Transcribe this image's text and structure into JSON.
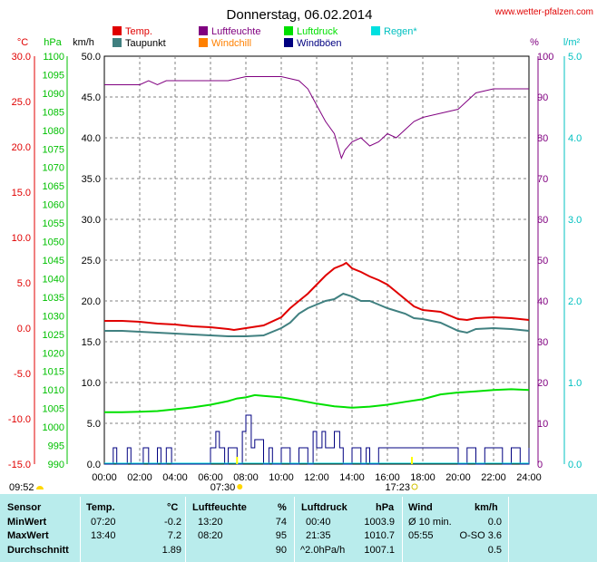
{
  "chart_data": {
    "type": "line",
    "title": "Donnerstag, 06.02.2014",
    "source": "www.wetter-pfalzen.com",
    "x_ticks": [
      "00:00",
      "02:00",
      "04:00",
      "06:00",
      "08:00",
      "10:00",
      "12:00",
      "14:00",
      "16:00",
      "18:00",
      "20:00",
      "22:00",
      "24:00"
    ],
    "axes": {
      "temp": {
        "unit": "°C",
        "ticks": [
          "30.0",
          "25.0",
          "20.0",
          "15.0",
          "10.0",
          "5.0",
          "0.0",
          "-5.0",
          "-10.0",
          "-15.0"
        ],
        "range": [
          -15,
          30
        ],
        "color": "#e00000"
      },
      "pressure": {
        "unit": "hPa",
        "ticks": [
          "1100",
          "1095",
          "1090",
          "1085",
          "1080",
          "1075",
          "1070",
          "1065",
          "1060",
          "1055",
          "1050",
          "1045",
          "1040",
          "1035",
          "1030",
          "1025",
          "1020",
          "1015",
          "1010",
          "1005",
          "1000",
          "995",
          "990"
        ],
        "range": [
          990,
          1100
        ],
        "color": "#00c000"
      },
      "wind": {
        "unit": "km/h",
        "ticks": [
          "50.0",
          "45.0",
          "40.0",
          "35.0",
          "30.0",
          "25.0",
          "20.0",
          "15.0",
          "10.0",
          "5.0",
          "0.0"
        ],
        "range": [
          0,
          50
        ],
        "color": "#000000"
      },
      "humidity": {
        "unit": "%",
        "ticks": [
          "100",
          "90",
          "80",
          "70",
          "60",
          "50",
          "40",
          "30",
          "20",
          "10",
          "0"
        ],
        "range": [
          0,
          100
        ],
        "color": "#800080"
      },
      "rain": {
        "unit": "l/m²",
        "ticks": [
          "5.0",
          "4.0",
          "3.0",
          "2.0",
          "1.0",
          "0.0"
        ],
        "range": [
          0,
          5
        ],
        "color": "#00c0c0"
      }
    },
    "legend": [
      {
        "name": "Temp.",
        "color": "#e00000"
      },
      {
        "name": "Luftfeuchte",
        "color": "#800080"
      },
      {
        "name": "Luftdruck",
        "color": "#00e000"
      },
      {
        "name": "Regen*",
        "color": "#00e0e0"
      },
      {
        "name": "Taupunkt",
        "color": "#408080"
      },
      {
        "name": "Windchill",
        "color": "#ff8000"
      },
      {
        "name": "Windböen",
        "color": "#000080"
      }
    ],
    "sunrise": "07:30",
    "sunset": "17:23",
    "moonrise": "09:52",
    "series": [
      {
        "name": "Temp.",
        "axis": "temp",
        "color": "#e00000",
        "x": [
          0,
          1,
          2,
          3,
          4,
          5,
          6,
          7,
          7.33,
          8,
          9,
          10,
          10.5,
          11,
          11.5,
          12,
          12.5,
          13,
          13.5,
          13.67,
          14,
          14.5,
          15,
          15.5,
          16,
          16.5,
          17,
          17.5,
          18,
          19,
          20,
          20.5,
          21,
          22,
          23,
          24
        ],
        "values": [
          0.8,
          0.8,
          0.7,
          0.5,
          0.4,
          0.2,
          0.1,
          -0.1,
          -0.2,
          0,
          0.3,
          1.2,
          2.2,
          3,
          3.8,
          4.8,
          5.8,
          6.6,
          7.0,
          7.2,
          6.6,
          6.2,
          5.7,
          5.3,
          4.8,
          4.0,
          3.2,
          2.4,
          2.0,
          1.8,
          1.0,
          0.9,
          1.1,
          1.2,
          1.1,
          0.9
        ]
      },
      {
        "name": "Taupunkt",
        "axis": "temp",
        "color": "#408080",
        "x": [
          0,
          1,
          2,
          3,
          4,
          5,
          6,
          7,
          8,
          9,
          10,
          10.5,
          11,
          11.5,
          12,
          12.5,
          13,
          13.5,
          14,
          14.5,
          15,
          15.5,
          16,
          17,
          17.5,
          18,
          19,
          20,
          20.5,
          21,
          22,
          23,
          24
        ],
        "values": [
          -0.3,
          -0.3,
          -0.4,
          -0.5,
          -0.6,
          -0.7,
          -0.8,
          -0.9,
          -0.9,
          -0.8,
          0.0,
          0.6,
          1.6,
          2.2,
          2.6,
          3.0,
          3.2,
          3.8,
          3.5,
          3.0,
          3.0,
          2.6,
          2.2,
          1.6,
          1.1,
          1.0,
          0.6,
          -0.3,
          -0.5,
          -0.1,
          0.0,
          -0.1,
          -0.3
        ]
      },
      {
        "name": "Luftfeuchte",
        "axis": "humidity",
        "color": "#800080",
        "x": [
          0,
          1,
          2,
          2.5,
          3,
          3.5,
          4,
          5,
          6,
          7,
          8,
          8.5,
          9,
          10,
          11,
          11.5,
          12,
          12.5,
          13,
          13.2,
          13.4,
          13.6,
          14,
          14.5,
          15,
          15.5,
          16,
          16.5,
          17,
          17.5,
          18,
          19,
          20,
          21,
          22,
          23,
          24
        ],
        "values": [
          93,
          93,
          93,
          94,
          93,
          94,
          94,
          94,
          94,
          94,
          95,
          95,
          95,
          95,
          94,
          92,
          88,
          84,
          81,
          78,
          75,
          77,
          79,
          80,
          78,
          79,
          81,
          80,
          82,
          84,
          85,
          86,
          87,
          91,
          92,
          92,
          92
        ]
      },
      {
        "name": "Luftdruck",
        "axis": "pressure",
        "color": "#00e000",
        "x": [
          0,
          1,
          2,
          3,
          4,
          5,
          6,
          7,
          7.5,
          8,
          8.5,
          9,
          10,
          11,
          12,
          13,
          14,
          15,
          16,
          17,
          18,
          19,
          20,
          21,
          22,
          23,
          24
        ],
        "values": [
          1004.0,
          1004.0,
          1004.1,
          1004.3,
          1004.8,
          1005.3,
          1006.0,
          1007.0,
          1007.7,
          1008.0,
          1008.6,
          1008.4,
          1008.0,
          1007.2,
          1006.3,
          1005.6,
          1005.2,
          1005.5,
          1006.0,
          1006.8,
          1007.5,
          1008.8,
          1009.3,
          1009.6,
          1010.0,
          1010.2,
          1010.0
        ]
      },
      {
        "name": "Windböen",
        "axis": "wind",
        "color": "#000080",
        "x": [
          0,
          0.5,
          0.7,
          1,
          1.3,
          1.5,
          2,
          2.2,
          2.5,
          3,
          3.2,
          3.5,
          3.8,
          4,
          5,
          5.5,
          6,
          6.3,
          6.5,
          6.8,
          7,
          7.5,
          7.8,
          8,
          8.3,
          8.5,
          9,
          9.3,
          9.5,
          10,
          10.5,
          11,
          11.5,
          11.8,
          12,
          12.3,
          12.5,
          13,
          13.3,
          13.5,
          14,
          14.5,
          14.8,
          15,
          15.5,
          16,
          16.5,
          17,
          17.5,
          18,
          18.5,
          19,
          19.5,
          20,
          20.5,
          21,
          21.5,
          22,
          22.5,
          23,
          23.5,
          24
        ],
        "values": [
          0,
          2,
          0,
          0,
          2,
          0,
          0,
          2,
          0,
          2,
          0,
          2,
          0,
          0,
          0,
          0,
          2,
          4,
          2,
          0,
          2,
          0,
          4,
          6,
          2,
          3,
          0,
          2,
          0,
          2,
          0,
          2,
          0,
          4,
          2,
          4,
          2,
          4,
          2,
          0,
          2,
          0,
          2,
          0,
          2,
          2,
          2,
          2,
          2,
          2,
          2,
          2,
          2,
          0,
          2,
          0,
          2,
          2,
          0,
          2,
          0,
          2
        ]
      }
    ]
  },
  "table": {
    "headers": {
      "sensor": "Sensor",
      "temp": "Temp.",
      "temp_unit": "°C",
      "hum": "Luftfeuchte",
      "hum_unit": "%",
      "press": "Luftdruck",
      "press_unit": "hPa",
      "wind": "Wind",
      "wind_unit": "km/h"
    },
    "rows": [
      {
        "label": "MinWert",
        "temp_time": "07:20",
        "temp": "-0.2",
        "hum_time": "13:20",
        "hum": "74",
        "press_time": "00:40",
        "press": "1003.9",
        "wind_time": "Ø 10 min.",
        "wind": "0.0"
      },
      {
        "label": "MaxWert",
        "temp_time": "13:40",
        "temp": "7.2",
        "hum_time": "08:20",
        "hum": "95",
        "press_time": "21:35",
        "press": "1010.7",
        "wind_time": "05:55",
        "wind": "O-SO 3.6"
      },
      {
        "label": "Durchschnitt",
        "temp_time": "",
        "temp": "1.89",
        "hum_time": "",
        "hum": "90",
        "press_time": "^2.0hPa/h",
        "press": "1007.1",
        "wind_time": "",
        "wind": "0.5"
      }
    ]
  }
}
